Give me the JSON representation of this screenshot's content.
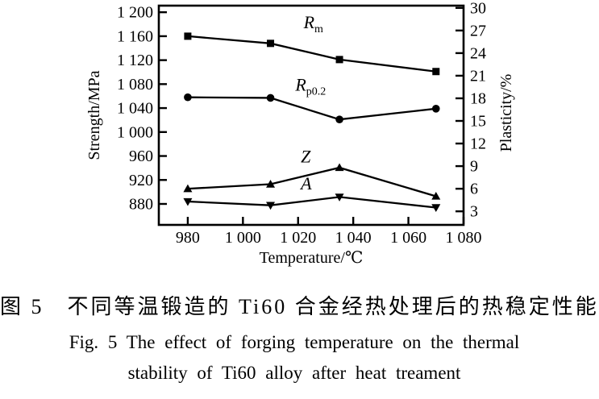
{
  "figure": {
    "caption_cn": "图 5　不同等温锻造的 Ti60 合金经热处理后的热稳定性能",
    "caption_en_line1": "Fig. 5   The effect of forging temperature on the thermal",
    "caption_en_line2": "stability of Ti60 alloy after heat treament"
  },
  "chart_data": {
    "type": "line",
    "xlabel": "Temperature/℃",
    "ylabel_left": "Strength/MPa",
    "ylabel_right": "Plasticity/%",
    "xlim": [
      969.5,
      1080
    ],
    "ylim_left": [
      845,
      1211
    ],
    "ylim_right": [
      1.2,
      30.3
    ],
    "grid": false,
    "legend": "inline-labels",
    "x_ticks": [
      {
        "value": 980,
        "label": "980"
      },
      {
        "value": 1000,
        "label": "1 000"
      },
      {
        "value": 1020,
        "label": "1 020"
      },
      {
        "value": 1040,
        "label": "1 040"
      },
      {
        "value": 1060,
        "label": "1 060"
      },
      {
        "value": 1080,
        "label": "1 080"
      }
    ],
    "left_ticks": [
      {
        "value": 1200,
        "label": "1 200"
      },
      {
        "value": 1160,
        "label": "1 160"
      },
      {
        "value": 1120,
        "label": "1 120"
      },
      {
        "value": 1080,
        "label": "1 080"
      },
      {
        "value": 1040,
        "label": "1 040"
      },
      {
        "value": 1000,
        "label": "1 000"
      },
      {
        "value": 960,
        "label": "960"
      },
      {
        "value": 920,
        "label": "920"
      },
      {
        "value": 880,
        "label": "880"
      }
    ],
    "right_ticks": [
      {
        "value": 30,
        "label": "30"
      },
      {
        "value": 27,
        "label": "27"
      },
      {
        "value": 24,
        "label": "24"
      },
      {
        "value": 21,
        "label": "21"
      },
      {
        "value": 18,
        "label": "18"
      },
      {
        "value": 15,
        "label": "15"
      },
      {
        "value": 12,
        "label": "12"
      },
      {
        "value": 9,
        "label": "9"
      },
      {
        "value": 6,
        "label": "6"
      },
      {
        "value": 3,
        "label": "3"
      }
    ],
    "x": [
      980,
      1010,
      1035,
      1070
    ],
    "series": [
      {
        "name": "Rm",
        "label_main": "R",
        "label_sub": "m",
        "axis": "left",
        "marker": "square",
        "values": [
          1160,
          1148,
          1121,
          1101
        ],
        "label_at": [
          1022,
          1173
        ]
      },
      {
        "name": "Rp0.2",
        "label_main": "R",
        "label_sub": "p0.2",
        "axis": "left",
        "marker": "circle",
        "values": [
          1058,
          1057,
          1021,
          1039
        ],
        "label_at": [
          1019,
          1069
        ]
      },
      {
        "name": "Z",
        "label_main": "Z",
        "label_sub": "",
        "axis": "right",
        "marker": "triangle-up",
        "values": [
          6.0,
          6.6,
          8.8,
          5.0
        ],
        "label_at": [
          1021,
          9.5
        ]
      },
      {
        "name": "A",
        "label_main": "A",
        "label_sub": "",
        "axis": "right",
        "marker": "triangle-down",
        "values": [
          4.3,
          3.8,
          4.9,
          3.5
        ],
        "label_at": [
          1021,
          5.9
        ]
      }
    ],
    "line_color": "#000000",
    "frame_color": "#000000"
  }
}
